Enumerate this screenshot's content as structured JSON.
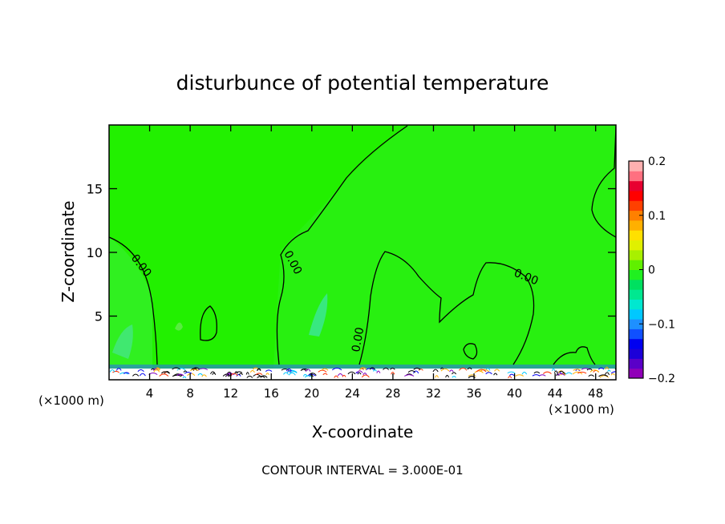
{
  "chart_data": {
    "type": "heatmap",
    "title": "disturbunce of potential temperature",
    "xlabel": "X-coordinate",
    "ylabel": "Z-coordinate",
    "x_unit": "(×1000 m)",
    "xlim": [
      0,
      50
    ],
    "ylim": [
      0,
      20
    ],
    "x_ticks": [
      4,
      8,
      12,
      16,
      20,
      24,
      28,
      32,
      36,
      40,
      44,
      48
    ],
    "y_ticks": [
      5,
      10,
      15
    ],
    "colorbar": {
      "min": -0.2,
      "max": 0.2,
      "tick_values": [
        0.2,
        0.1,
        0,
        -0.1,
        -0.2
      ],
      "tick_labels": [
        "0.2",
        "0.1",
        "0",
        "−0.1",
        "−0.2"
      ],
      "colors": [
        "#9000b8",
        "#5a00c8",
        "#1c00d8",
        "#0000f0",
        "#1050ff",
        "#1e90ff",
        "#00c8ff",
        "#00e8d0",
        "#00e890",
        "#00e060",
        "#20f020",
        "#60f000",
        "#a8f000",
        "#e0f000",
        "#ffe000",
        "#ffb000",
        "#ff8000",
        "#ff4000",
        "#ff0000",
        "#e80030",
        "#ff7080",
        "#ffb0b0"
      ]
    },
    "contour_label": "0.00",
    "contour_interval_label": "CONTOUR INTERVAL = 3.000E-01"
  }
}
